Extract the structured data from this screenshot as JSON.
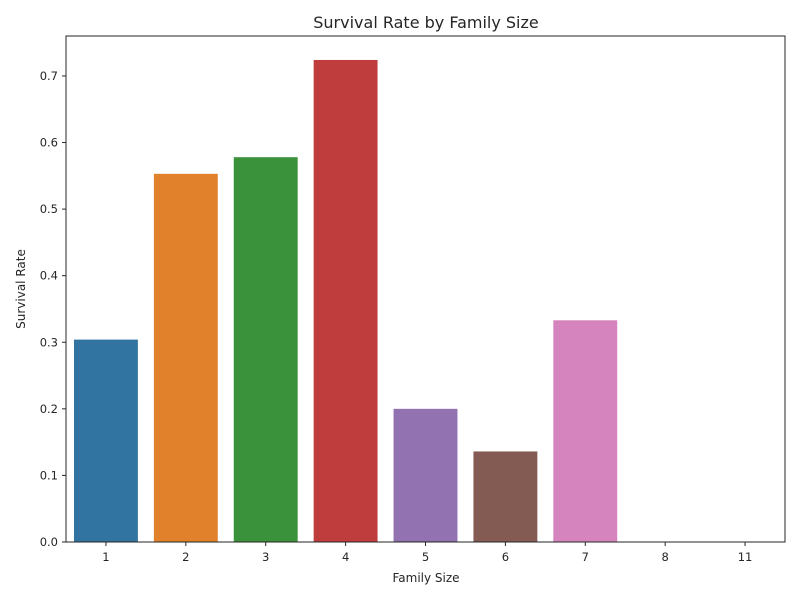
{
  "chart_data": {
    "type": "bar",
    "title": "Survival Rate by Family Size",
    "xlabel": "Family Size",
    "ylabel": "Survival Rate",
    "categories": [
      "1",
      "2",
      "3",
      "4",
      "5",
      "6",
      "7",
      "8",
      "11"
    ],
    "values": [
      0.304,
      0.553,
      0.578,
      0.724,
      0.2,
      0.136,
      0.333,
      0.0,
      0.0
    ],
    "colors": [
      "#3274a1",
      "#e1812c",
      "#3a923a",
      "#c03d3e",
      "#9372b2",
      "#845b53",
      "#d684bd",
      "#7f7f7f",
      "#a9aa35"
    ],
    "ylim": [
      0,
      0.76
    ],
    "yticks": [
      0.0,
      0.1,
      0.2,
      0.3,
      0.4,
      0.5,
      0.6,
      0.7
    ],
    "ytick_labels": [
      "0.0",
      "0.1",
      "0.2",
      "0.3",
      "0.4",
      "0.5",
      "0.6",
      "0.7"
    ],
    "grid": false,
    "legend": "none"
  }
}
